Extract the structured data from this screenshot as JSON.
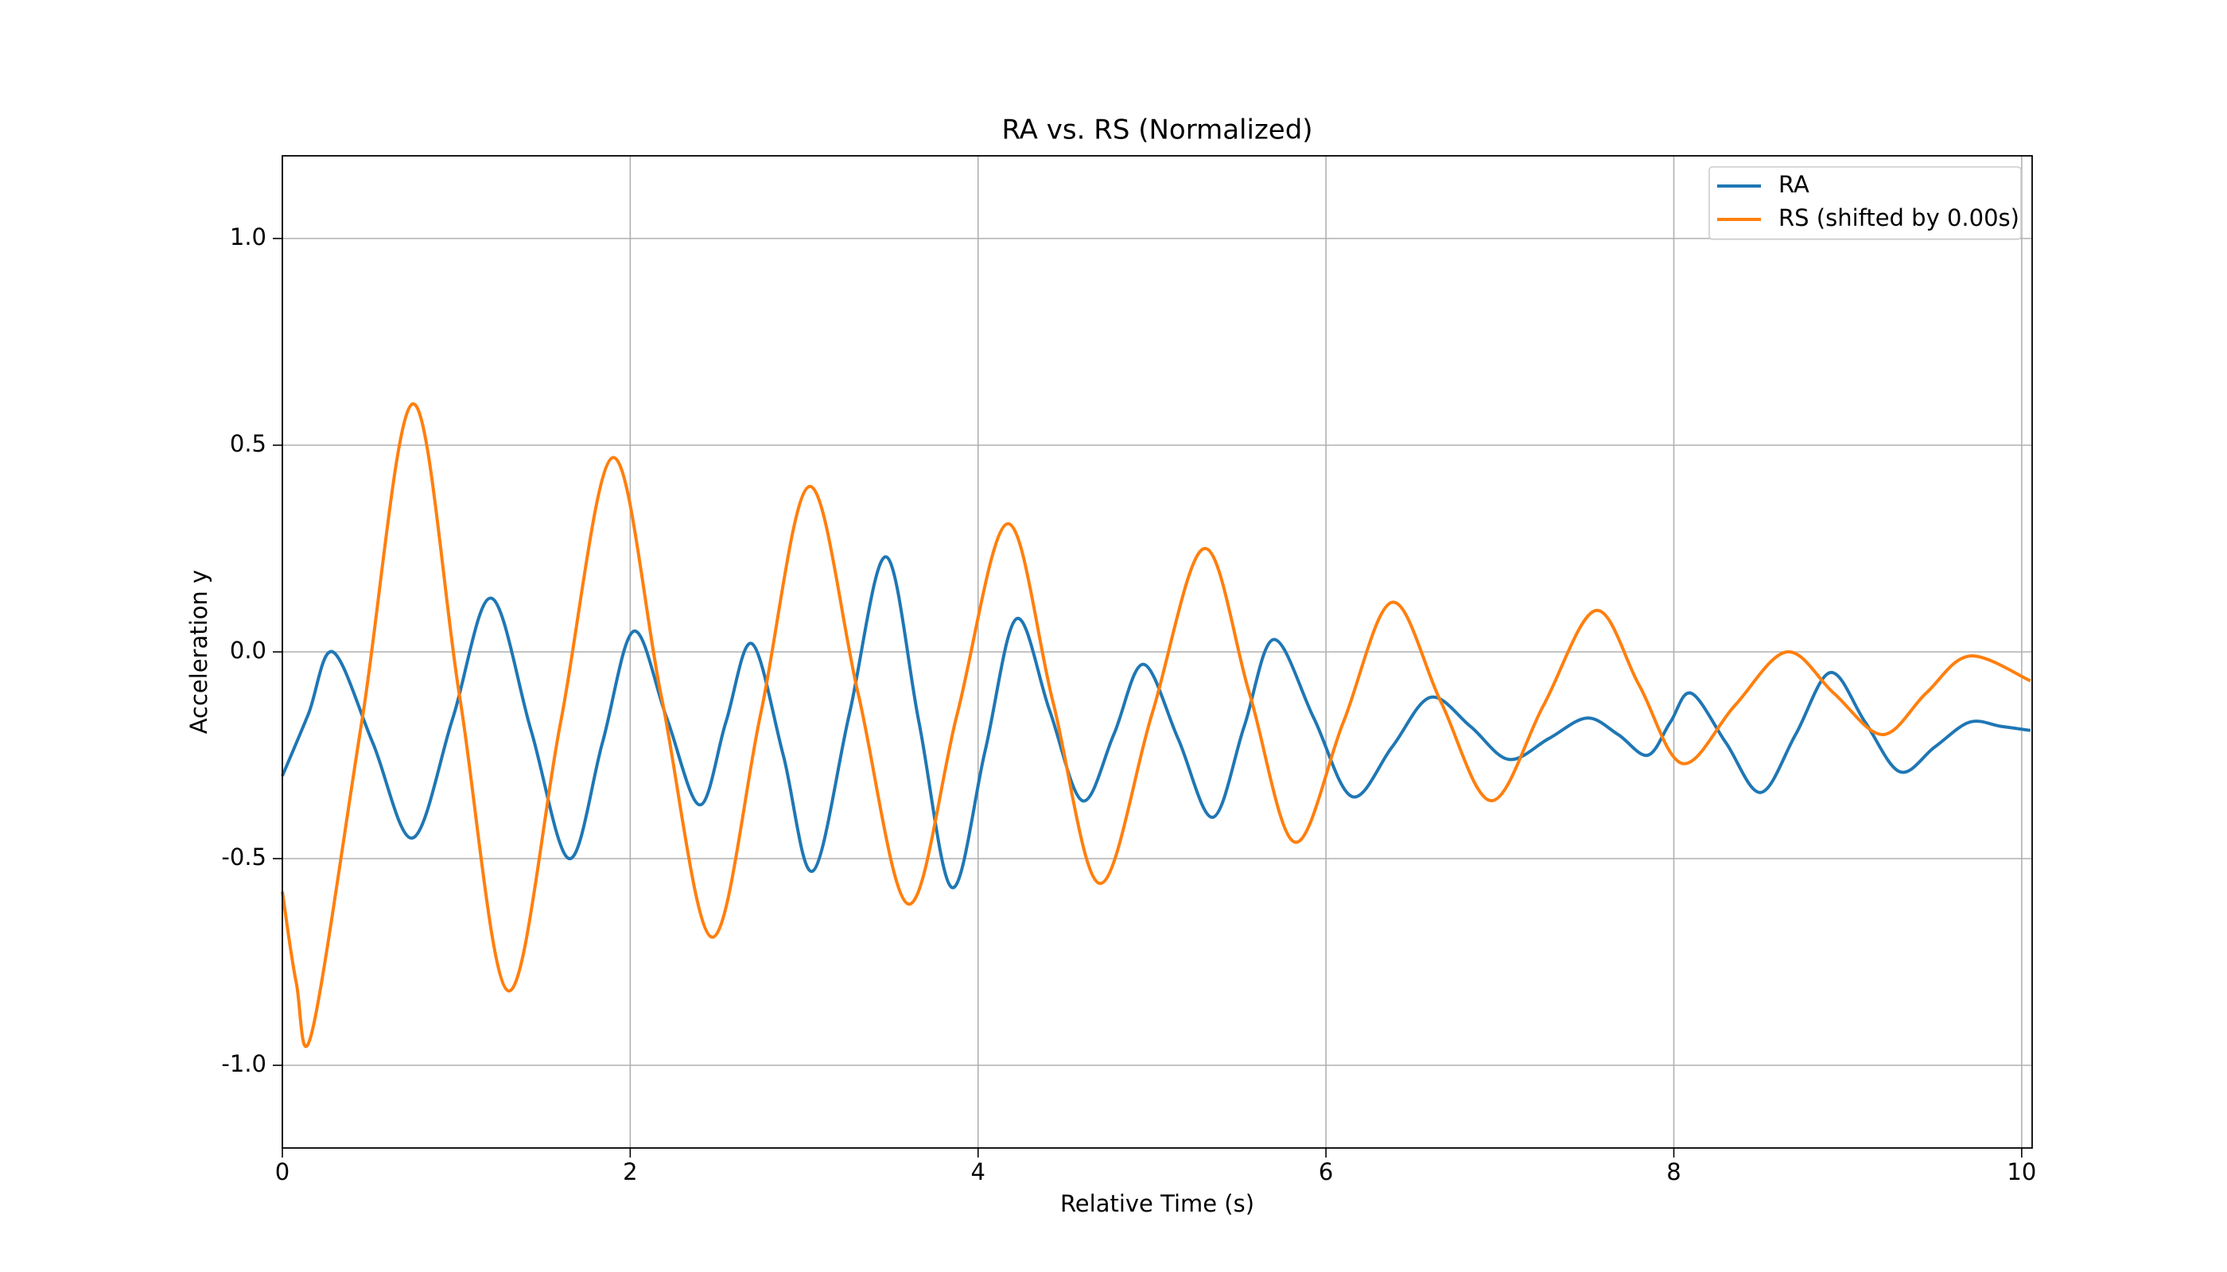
{
  "chart_data": {
    "type": "line",
    "title": "RA vs. RS (Normalized)",
    "x_label": "Relative Time (s)",
    "y_label": "Acceleration y",
    "xlim": [
      0,
      10.06
    ],
    "ylim": [
      -1.2,
      1.2
    ],
    "xticks": [
      0,
      2,
      4,
      6,
      8,
      10
    ],
    "yticks": [
      {
        "value": -1,
        "label": "-1.0"
      },
      {
        "value": -0.5,
        "label": "-0.5"
      },
      {
        "value": 0,
        "label": "0.0"
      },
      0.5,
      {
        "value": 1,
        "label": "1.0"
      }
    ],
    "grid": true,
    "legend": "upper right",
    "series": [
      {
        "name": "RA",
        "color": "#1f77b4",
        "x": [
          0,
          0.15,
          0.29,
          0.52,
          0.75,
          0.98,
          1.2,
          1.43,
          1.65,
          1.84,
          2.02,
          2.21,
          2.4,
          2.55,
          2.7,
          2.88,
          3.05,
          3.26,
          3.47,
          3.66,
          3.85,
          4.04,
          4.22,
          4.41,
          4.6,
          4.78,
          4.95,
          5.15,
          5.35,
          5.53,
          5.7,
          5.93,
          6.15,
          6.38,
          6.6,
          6.83,
          7.05,
          7.28,
          7.5,
          7.68,
          7.85,
          7.98,
          8.1,
          8.3,
          8.5,
          8.7,
          8.9,
          9.1,
          9.3,
          9.5,
          9.7,
          9.88,
          10.05
        ],
        "values": [
          -0.3,
          -0.15,
          0.0,
          -0.22,
          -0.45,
          -0.16,
          0.13,
          -0.19,
          -0.5,
          -0.22,
          0.05,
          -0.16,
          -0.37,
          -0.17,
          0.02,
          -0.25,
          -0.53,
          -0.15,
          0.23,
          -0.17,
          -0.57,
          -0.24,
          0.08,
          -0.14,
          -0.36,
          -0.2,
          -0.03,
          -0.21,
          -0.4,
          -0.18,
          0.03,
          -0.16,
          -0.35,
          -0.23,
          -0.11,
          -0.18,
          -0.26,
          -0.21,
          -0.16,
          -0.2,
          -0.25,
          -0.17,
          -0.1,
          -0.22,
          -0.34,
          -0.2,
          -0.05,
          -0.17,
          -0.29,
          -0.23,
          -0.17,
          -0.18,
          -0.19
        ]
      },
      {
        "name": "RS (shifted by 0.00s)",
        "color": "#ff7f0e",
        "x": [
          0,
          0.08,
          0.17,
          0.46,
          0.75,
          1.02,
          1.3,
          1.6,
          1.9,
          2.18,
          2.47,
          2.75,
          3.03,
          3.31,
          3.6,
          3.88,
          4.17,
          4.43,
          4.7,
          5.0,
          5.3,
          5.56,
          5.82,
          6.1,
          6.38,
          6.66,
          6.95,
          7.25,
          7.55,
          7.8,
          8.05,
          8.35,
          8.65,
          8.92,
          9.2,
          9.45,
          9.7,
          10.05
        ],
        "values": [
          -0.58,
          -0.8,
          -0.92,
          -0.16,
          0.6,
          -0.11,
          -0.82,
          -0.17,
          0.47,
          -0.11,
          -0.69,
          -0.15,
          0.4,
          -0.1,
          -0.61,
          -0.15,
          0.31,
          -0.12,
          -0.56,
          -0.15,
          0.25,
          -0.1,
          -0.46,
          -0.17,
          0.12,
          -0.12,
          -0.36,
          -0.13,
          0.1,
          -0.08,
          -0.27,
          -0.13,
          0.0,
          -0.1,
          -0.2,
          -0.1,
          -0.01,
          -0.07
        ]
      }
    ]
  }
}
